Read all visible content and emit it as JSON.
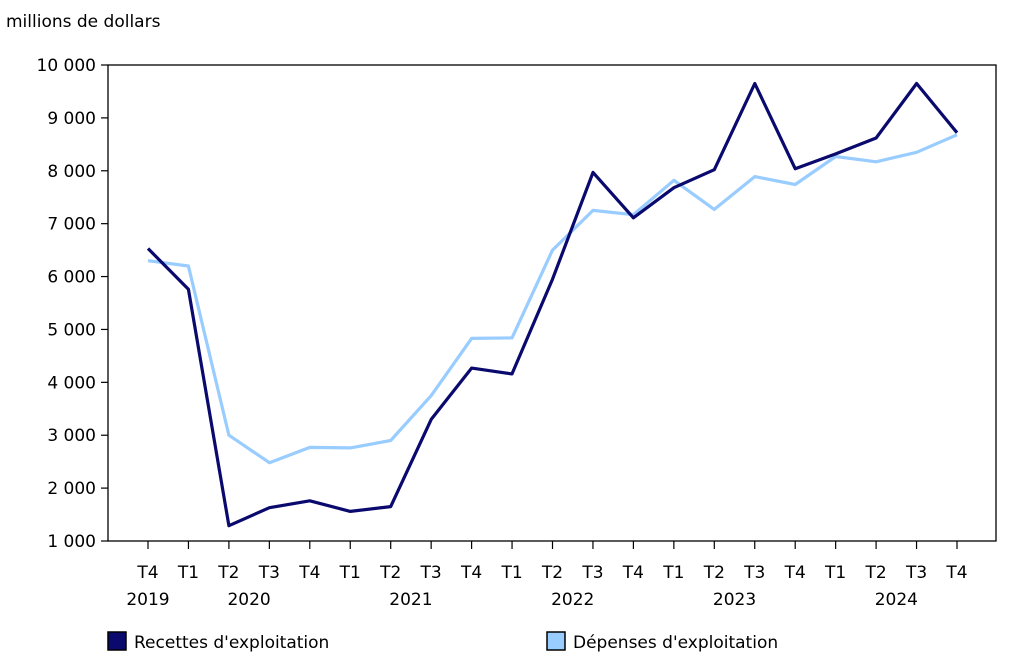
{
  "chart_data": {
    "type": "line",
    "ylabel": "millions de dollars",
    "ylim": [
      1000,
      10000
    ],
    "yticks": [
      1000,
      2000,
      3000,
      4000,
      5000,
      6000,
      7000,
      8000,
      9000,
      10000
    ],
    "ytick_labels": [
      "1 000",
      "2 000",
      "3 000",
      "4 000",
      "5 000",
      "6 000",
      "7 000",
      "8 000",
      "9 000",
      "10 000"
    ],
    "categories": [
      "T4",
      "T1",
      "T2",
      "T3",
      "T4",
      "T1",
      "T2",
      "T3",
      "T4",
      "T1",
      "T2",
      "T3",
      "T4",
      "T1",
      "T2",
      "T3",
      "T4",
      "T1",
      "T2",
      "T3",
      "T4"
    ],
    "year_labels": [
      {
        "label": "2019",
        "index": 0
      },
      {
        "label": "2020",
        "index": 2.5
      },
      {
        "label": "2021",
        "index": 6.5
      },
      {
        "label": "2022",
        "index": 10.5
      },
      {
        "label": "2023",
        "index": 14.5
      },
      {
        "label": "2024",
        "index": 18.5
      }
    ],
    "series": [
      {
        "name": "Dépenses d'exploitation",
        "color": "#99ccff",
        "values": [
          6300,
          6200,
          3000,
          2480,
          2770,
          2760,
          2900,
          3750,
          4830,
          4840,
          6500,
          7250,
          7170,
          7820,
          7270,
          7890,
          7740,
          8270,
          8170,
          8350,
          8680
        ]
      },
      {
        "name": "Recettes d'exploitation",
        "color": "#0a0a6e",
        "values": [
          6530,
          5760,
          1290,
          1630,
          1760,
          1560,
          1650,
          3300,
          4270,
          4160,
          5950,
          7970,
          7110,
          7680,
          8020,
          9650,
          8040,
          8320,
          8620,
          9650,
          8720
        ]
      }
    ],
    "legend": [
      {
        "label": "Recettes d'exploitation",
        "color": "#0a0a6e"
      },
      {
        "label": "Dépenses d'exploitation",
        "color": "#99ccff"
      }
    ],
    "grid": false,
    "legend_position": "bottom"
  }
}
